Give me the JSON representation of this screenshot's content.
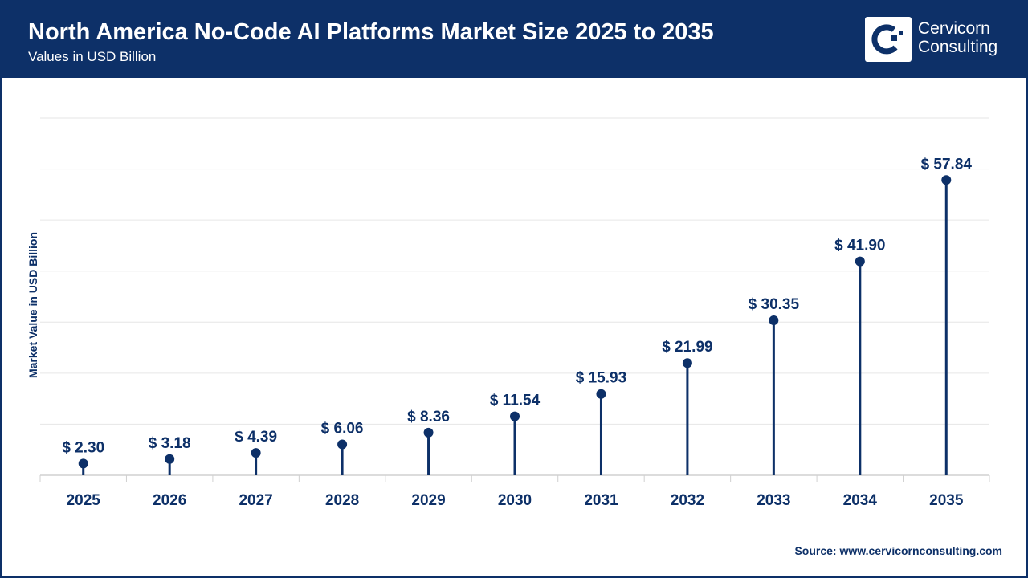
{
  "header": {
    "title": "North America No-Code AI Platforms Market Size 2025 to 2035",
    "subtitle": "Values in USD Billion"
  },
  "logo": {
    "line1": "Cervicorn",
    "line2": "Consulting"
  },
  "source": "Source: www.cervicornconsulting.com",
  "colors": {
    "primary": "#0d3068",
    "grid": "#e6e6e6"
  },
  "chart_data": {
    "type": "lollipop",
    "title": "North America No-Code AI Platforms Market Size 2025 to 2035",
    "subtitle": "Values in USD Billion",
    "xlabel": "",
    "ylabel": "Market Value in USD Billion",
    "ylim": [
      0,
      70
    ],
    "grid": true,
    "categories": [
      "2025",
      "2026",
      "2027",
      "2028",
      "2029",
      "2030",
      "2031",
      "2032",
      "2033",
      "2034",
      "2035"
    ],
    "values": [
      2.3,
      3.18,
      4.39,
      6.06,
      8.36,
      11.54,
      15.93,
      21.99,
      30.35,
      41.9,
      57.84
    ],
    "labels": [
      "$ 2.30",
      "$ 3.18",
      "$ 4.39",
      "$ 6.06",
      "$ 8.36",
      "$ 11.54",
      "$ 15.93",
      "$ 21.99",
      "$ 30.35",
      "$ 41.90",
      "$ 57.84"
    ]
  }
}
